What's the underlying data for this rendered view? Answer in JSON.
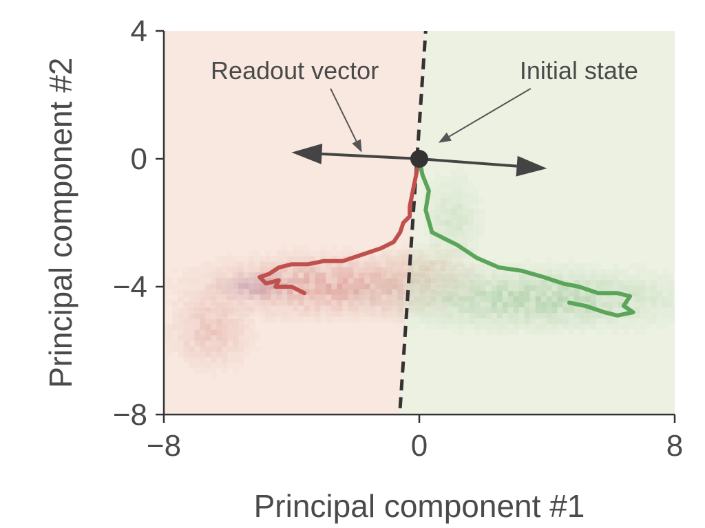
{
  "chart_data": {
    "type": "line",
    "xlabel": "Principal component #1",
    "ylabel": "Principal component #2",
    "xlim": [
      -8,
      8
    ],
    "ylim": [
      -8,
      4
    ],
    "xticks": [
      -8,
      0,
      8
    ],
    "yticks": [
      4,
      0,
      -4,
      -8
    ],
    "xtick_labels": [
      "−8",
      "0",
      "8"
    ],
    "ytick_labels": [
      "4",
      "0",
      "−4",
      "−8"
    ],
    "grid": false,
    "regions": {
      "left_color": "#f8e8df",
      "right_color": "#ecf1e2"
    },
    "decision_boundary": {
      "x": [
        -0.6,
        0.2
      ],
      "y": [
        -7.8,
        4.0
      ],
      "style": "dashed",
      "color": "#333333"
    },
    "readout_vector": {
      "from": [
        0,
        0
      ],
      "to_left": [
        -4.0,
        0.2
      ],
      "to_right": [
        4.0,
        -0.3
      ],
      "color": "#444444"
    },
    "initial_state": {
      "x": 0,
      "y": 0,
      "color": "#333333"
    },
    "series": [
      {
        "color": "#c0504d",
        "x": [
          0,
          -0.1,
          -0.2,
          -0.3,
          -0.3,
          -0.5,
          -0.6,
          -0.8,
          -1.2,
          -1.8,
          -2.4,
          -3.0,
          -3.5,
          -4.0,
          -4.4,
          -4.7,
          -5.0,
          -4.8,
          -4.4,
          -4.5,
          -4.0,
          -3.6
        ],
        "y": [
          0,
          -0.5,
          -1.0,
          -1.5,
          -1.8,
          -2.0,
          -2.3,
          -2.6,
          -2.8,
          -3.0,
          -3.2,
          -3.2,
          -3.3,
          -3.3,
          -3.4,
          -3.6,
          -3.7,
          -3.9,
          -3.8,
          -4.0,
          -4.0,
          -4.2
        ]
      },
      {
        "color": "#5aa55a",
        "x": [
          0,
          0.1,
          0.3,
          0.2,
          0.4,
          0.8,
          1.2,
          1.8,
          2.5,
          3.2,
          3.9,
          4.5,
          5.0,
          5.6,
          6.2,
          6.6,
          6.4,
          6.7,
          6.2,
          5.8,
          5.2,
          4.7
        ],
        "y": [
          0,
          -0.5,
          -1.0,
          -1.6,
          -2.3,
          -2.5,
          -2.7,
          -3.1,
          -3.4,
          -3.5,
          -3.7,
          -3.9,
          -4.0,
          -4.2,
          -4.2,
          -4.3,
          -4.6,
          -4.8,
          -4.9,
          -4.8,
          -4.6,
          -4.5
        ]
      }
    ],
    "clouds": [
      {
        "color": "#c0504d",
        "cx": -3.0,
        "cy": -3.9,
        "rx": 3.4,
        "ry": 0.8,
        "density": 0.3
      },
      {
        "color": "#c0504d",
        "cx": -6.6,
        "cy": -5.3,
        "rx": 1.1,
        "ry": 1.0,
        "density": 0.18
      },
      {
        "color": "#8a6aa0",
        "cx": -5.2,
        "cy": -3.9,
        "rx": 1.0,
        "ry": 0.35,
        "density": 0.22
      },
      {
        "color": "#5aa55a",
        "cx": 3.6,
        "cy": -4.3,
        "rx": 4.0,
        "ry": 0.8,
        "density": 0.26
      },
      {
        "color": "#5aa55a",
        "cx": 1.0,
        "cy": -1.8,
        "rx": 0.8,
        "ry": 1.3,
        "density": 0.12
      },
      {
        "color": "#c09a70",
        "cx": 0.0,
        "cy": -3.3,
        "rx": 1.4,
        "ry": 0.55,
        "density": 0.2
      }
    ],
    "annotations": [
      {
        "text": "Readout vector",
        "x": -3.9,
        "y": 2.8,
        "arrow_to": [
          -1.8,
          0.2
        ]
      },
      {
        "text": "Initial state",
        "x": 5.0,
        "y": 2.8,
        "arrow_to": [
          0.6,
          0.5
        ]
      }
    ]
  }
}
